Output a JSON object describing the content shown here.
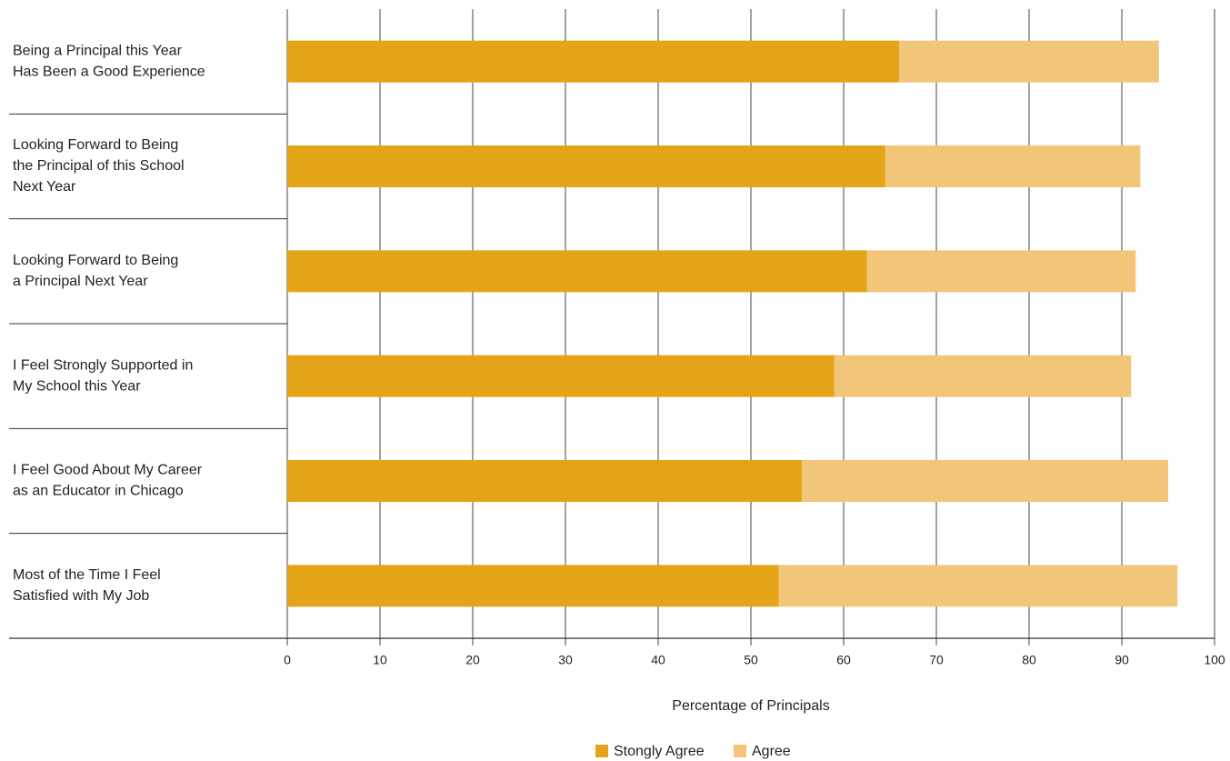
{
  "chart_data": {
    "type": "stacked-barh",
    "categories": [
      [
        "Being a Principal this Year",
        "Has Been a Good Experience"
      ],
      [
        "Looking Forward to Being",
        "the Principal of this School",
        "Next Year"
      ],
      [
        "Looking Forward to Being",
        "a Principal Next Year"
      ],
      [
        "I Feel Strongly Supported in",
        "My School this Year"
      ],
      [
        "I Feel Good About My Career",
        "as an Educator in Chicago"
      ],
      [
        "Most of the Time I Feel",
        "Satisfied with My Job"
      ]
    ],
    "series": [
      {
        "name": "Stongly Agree",
        "color": "#e3a517",
        "values": [
          66,
          64.5,
          62.5,
          59,
          55.5,
          53
        ]
      },
      {
        "name": "Agree",
        "color": "#f2c679",
        "values": [
          28,
          27.5,
          29,
          32,
          39.5,
          43
        ]
      }
    ],
    "xlabel": "Percentage of Principals",
    "xlim": [
      0,
      100
    ],
    "xticks": [
      0,
      10,
      20,
      30,
      40,
      50,
      60,
      70,
      80,
      90,
      100
    ],
    "grid": true,
    "legend": "bottom"
  }
}
